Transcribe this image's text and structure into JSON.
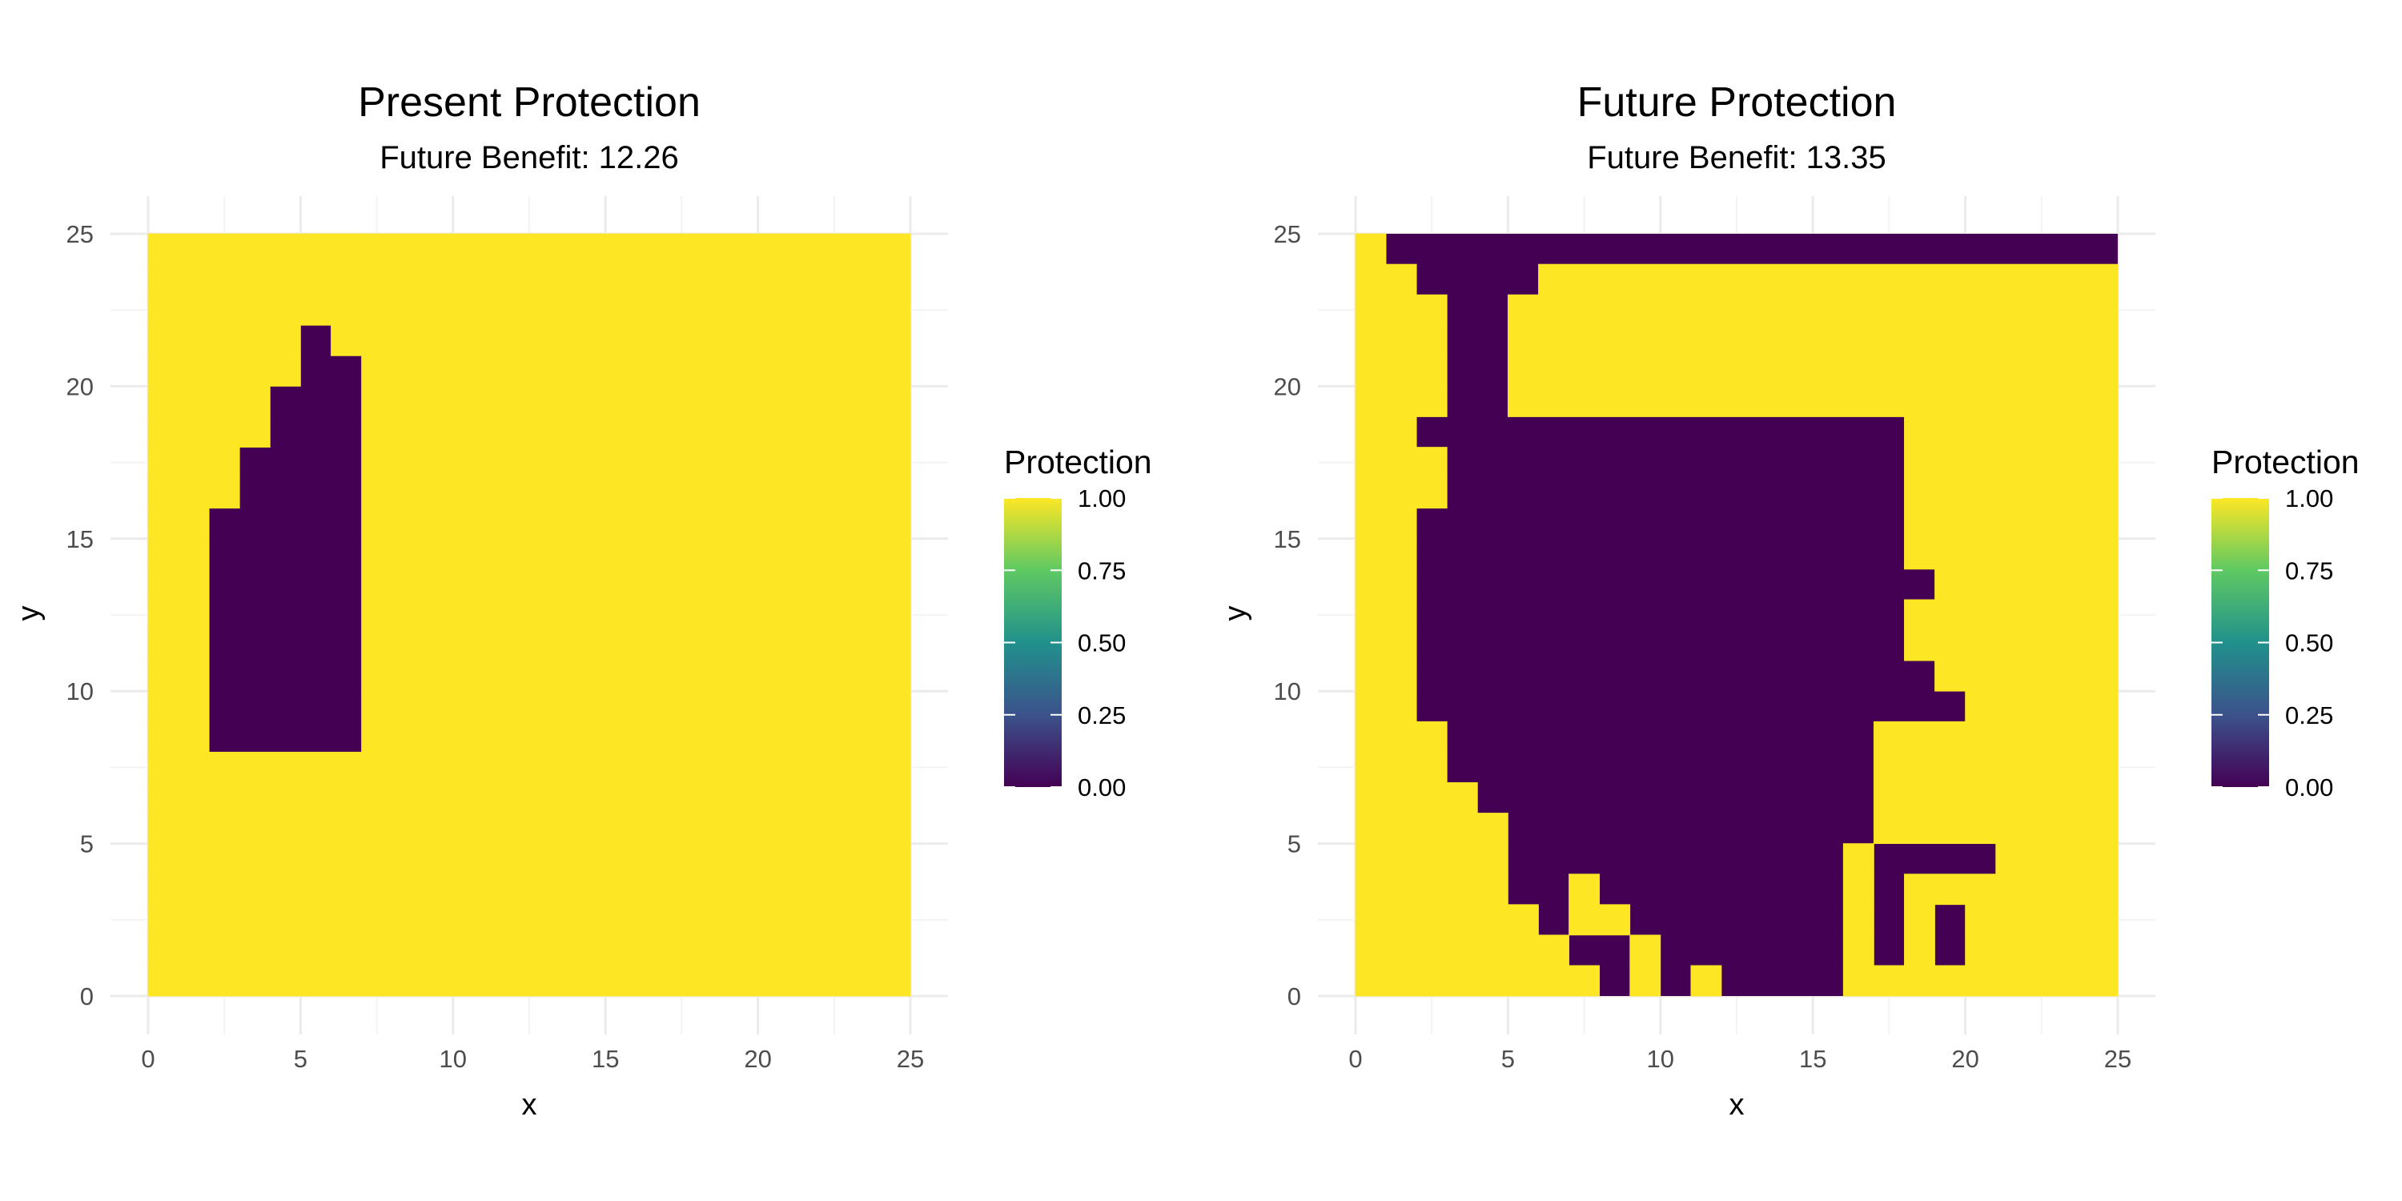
{
  "chart_data": [
    {
      "type": "heatmap",
      "title": "Present Protection",
      "subtitle": "Future Benefit: 12.26",
      "xlabel": "x",
      "ylabel": "y",
      "xlim": [
        0,
        25
      ],
      "ylim": [
        0,
        25
      ],
      "x_ticks": [
        0,
        5,
        10,
        15,
        20,
        25
      ],
      "y_ticks": [
        0,
        5,
        10,
        15,
        20,
        25
      ],
      "x_tick_labels": [
        "0",
        "5",
        "10",
        "15",
        "20",
        "25"
      ],
      "y_tick_labels": [
        "0",
        "5",
        "10",
        "15",
        "20",
        "25"
      ],
      "grid": true,
      "legend": {
        "title": "Protection",
        "position": "right",
        "range": [
          0,
          1
        ],
        "ticks": [
          0,
          0.25,
          0.5,
          0.75,
          1
        ],
        "tick_labels": [
          "0.00",
          "0.25",
          "0.50",
          "0.75",
          "1.00"
        ]
      },
      "colorscale": "viridis",
      "color_low": "#440154",
      "color_high": "#fde725",
      "cell_size": 1,
      "cell_origin": "lower-left",
      "protected_runs": {
        "0": [
          [
            0,
            25
          ]
        ],
        "1": [
          [
            0,
            25
          ]
        ],
        "2": [
          [
            0,
            25
          ]
        ],
        "3": [
          [
            0,
            25
          ]
        ],
        "4": [
          [
            0,
            25
          ]
        ],
        "5": [
          [
            0,
            25
          ]
        ],
        "6": [
          [
            0,
            25
          ]
        ],
        "7": [
          [
            0,
            25
          ]
        ],
        "8": [
          [
            0,
            2
          ],
          [
            7,
            25
          ]
        ],
        "9": [
          [
            0,
            2
          ],
          [
            7,
            25
          ]
        ],
        "10": [
          [
            0,
            2
          ],
          [
            7,
            25
          ]
        ],
        "11": [
          [
            0,
            2
          ],
          [
            7,
            25
          ]
        ],
        "12": [
          [
            0,
            2
          ],
          [
            7,
            25
          ]
        ],
        "13": [
          [
            0,
            2
          ],
          [
            7,
            25
          ]
        ],
        "14": [
          [
            0,
            2
          ],
          [
            7,
            25
          ]
        ],
        "15": [
          [
            0,
            2
          ],
          [
            7,
            25
          ]
        ],
        "16": [
          [
            0,
            3
          ],
          [
            7,
            25
          ]
        ],
        "17": [
          [
            0,
            3
          ],
          [
            7,
            25
          ]
        ],
        "18": [
          [
            0,
            4
          ],
          [
            7,
            25
          ]
        ],
        "19": [
          [
            0,
            4
          ],
          [
            7,
            25
          ]
        ],
        "20": [
          [
            0,
            5
          ],
          [
            7,
            25
          ]
        ],
        "21": [
          [
            0,
            5
          ],
          [
            6,
            25
          ]
        ],
        "22": [
          [
            0,
            6
          ],
          [
            6,
            25
          ]
        ],
        "23": [
          [
            0,
            6
          ],
          [
            5,
            25
          ]
        ],
        "24": [
          [
            0,
            7
          ],
          [
            5,
            25
          ]
        ]
      }
    },
    {
      "type": "heatmap",
      "title": "Future Protection",
      "subtitle": "Future Benefit: 13.35",
      "xlabel": "x",
      "ylabel": "y",
      "xlim": [
        0,
        25
      ],
      "ylim": [
        0,
        25
      ],
      "x_ticks": [
        0,
        5,
        10,
        15,
        20,
        25
      ],
      "y_ticks": [
        0,
        5,
        10,
        15,
        20,
        25
      ],
      "x_tick_labels": [
        "0",
        "5",
        "10",
        "15",
        "20",
        "25"
      ],
      "y_tick_labels": [
        "0",
        "5",
        "10",
        "15",
        "20",
        "25"
      ],
      "grid": true,
      "legend": {
        "title": "Protection",
        "position": "right",
        "range": [
          0,
          1
        ],
        "ticks": [
          0,
          0.25,
          0.5,
          0.75,
          1
        ],
        "tick_labels": [
          "0.00",
          "0.25",
          "0.50",
          "0.75",
          "1.00"
        ]
      },
      "colorscale": "viridis",
      "color_low": "#440154",
      "color_high": "#fde725",
      "cell_size": 1,
      "cell_origin": "lower-left",
      "protected_runs": {
        "0": [
          [
            0,
            8
          ],
          [
            9,
            10
          ],
          [
            11,
            12
          ],
          [
            16,
            25
          ]
        ],
        "1": [
          [
            0,
            7
          ],
          [
            9,
            10
          ],
          [
            16,
            17
          ],
          [
            18,
            19
          ],
          [
            20,
            25
          ]
        ],
        "2": [
          [
            0,
            6
          ],
          [
            7,
            9
          ],
          [
            16,
            17
          ],
          [
            18,
            19
          ],
          [
            20,
            25
          ]
        ],
        "3": [
          [
            0,
            5
          ],
          [
            7,
            8
          ],
          [
            16,
            17
          ],
          [
            18,
            25
          ]
        ],
        "4": [
          [
            0,
            5
          ],
          [
            16,
            17
          ],
          [
            21,
            25
          ]
        ],
        "5": [
          [
            0,
            5
          ],
          [
            17,
            25
          ]
        ],
        "6": [
          [
            0,
            4
          ],
          [
            17,
            25
          ]
        ],
        "7": [
          [
            0,
            3
          ],
          [
            17,
            25
          ]
        ],
        "8": [
          [
            0,
            3
          ],
          [
            17,
            25
          ]
        ],
        "9": [
          [
            0,
            2
          ],
          [
            20,
            25
          ]
        ],
        "10": [
          [
            0,
            2
          ],
          [
            19,
            25
          ]
        ],
        "11": [
          [
            0,
            2
          ],
          [
            18,
            25
          ]
        ],
        "12": [
          [
            0,
            2
          ],
          [
            18,
            25
          ]
        ],
        "13": [
          [
            0,
            2
          ],
          [
            19,
            25
          ]
        ],
        "14": [
          [
            0,
            2
          ],
          [
            18,
            25
          ]
        ],
        "15": [
          [
            0,
            2
          ],
          [
            18,
            25
          ]
        ],
        "16": [
          [
            0,
            3
          ],
          [
            18,
            25
          ]
        ],
        "17": [
          [
            0,
            3
          ],
          [
            18,
            25
          ]
        ],
        "18": [
          [
            0,
            2
          ],
          [
            18,
            25
          ]
        ],
        "19": [
          [
            0,
            3
          ],
          [
            5,
            25
          ]
        ],
        "20": [
          [
            0,
            3
          ],
          [
            5,
            25
          ]
        ],
        "21": [
          [
            0,
            3
          ],
          [
            5,
            25
          ]
        ],
        "22": [
          [
            0,
            3
          ],
          [
            5,
            25
          ]
        ],
        "23": [
          [
            0,
            2
          ],
          [
            6,
            25
          ]
        ],
        "24": [
          [
            0,
            1
          ]
        ]
      }
    }
  ]
}
